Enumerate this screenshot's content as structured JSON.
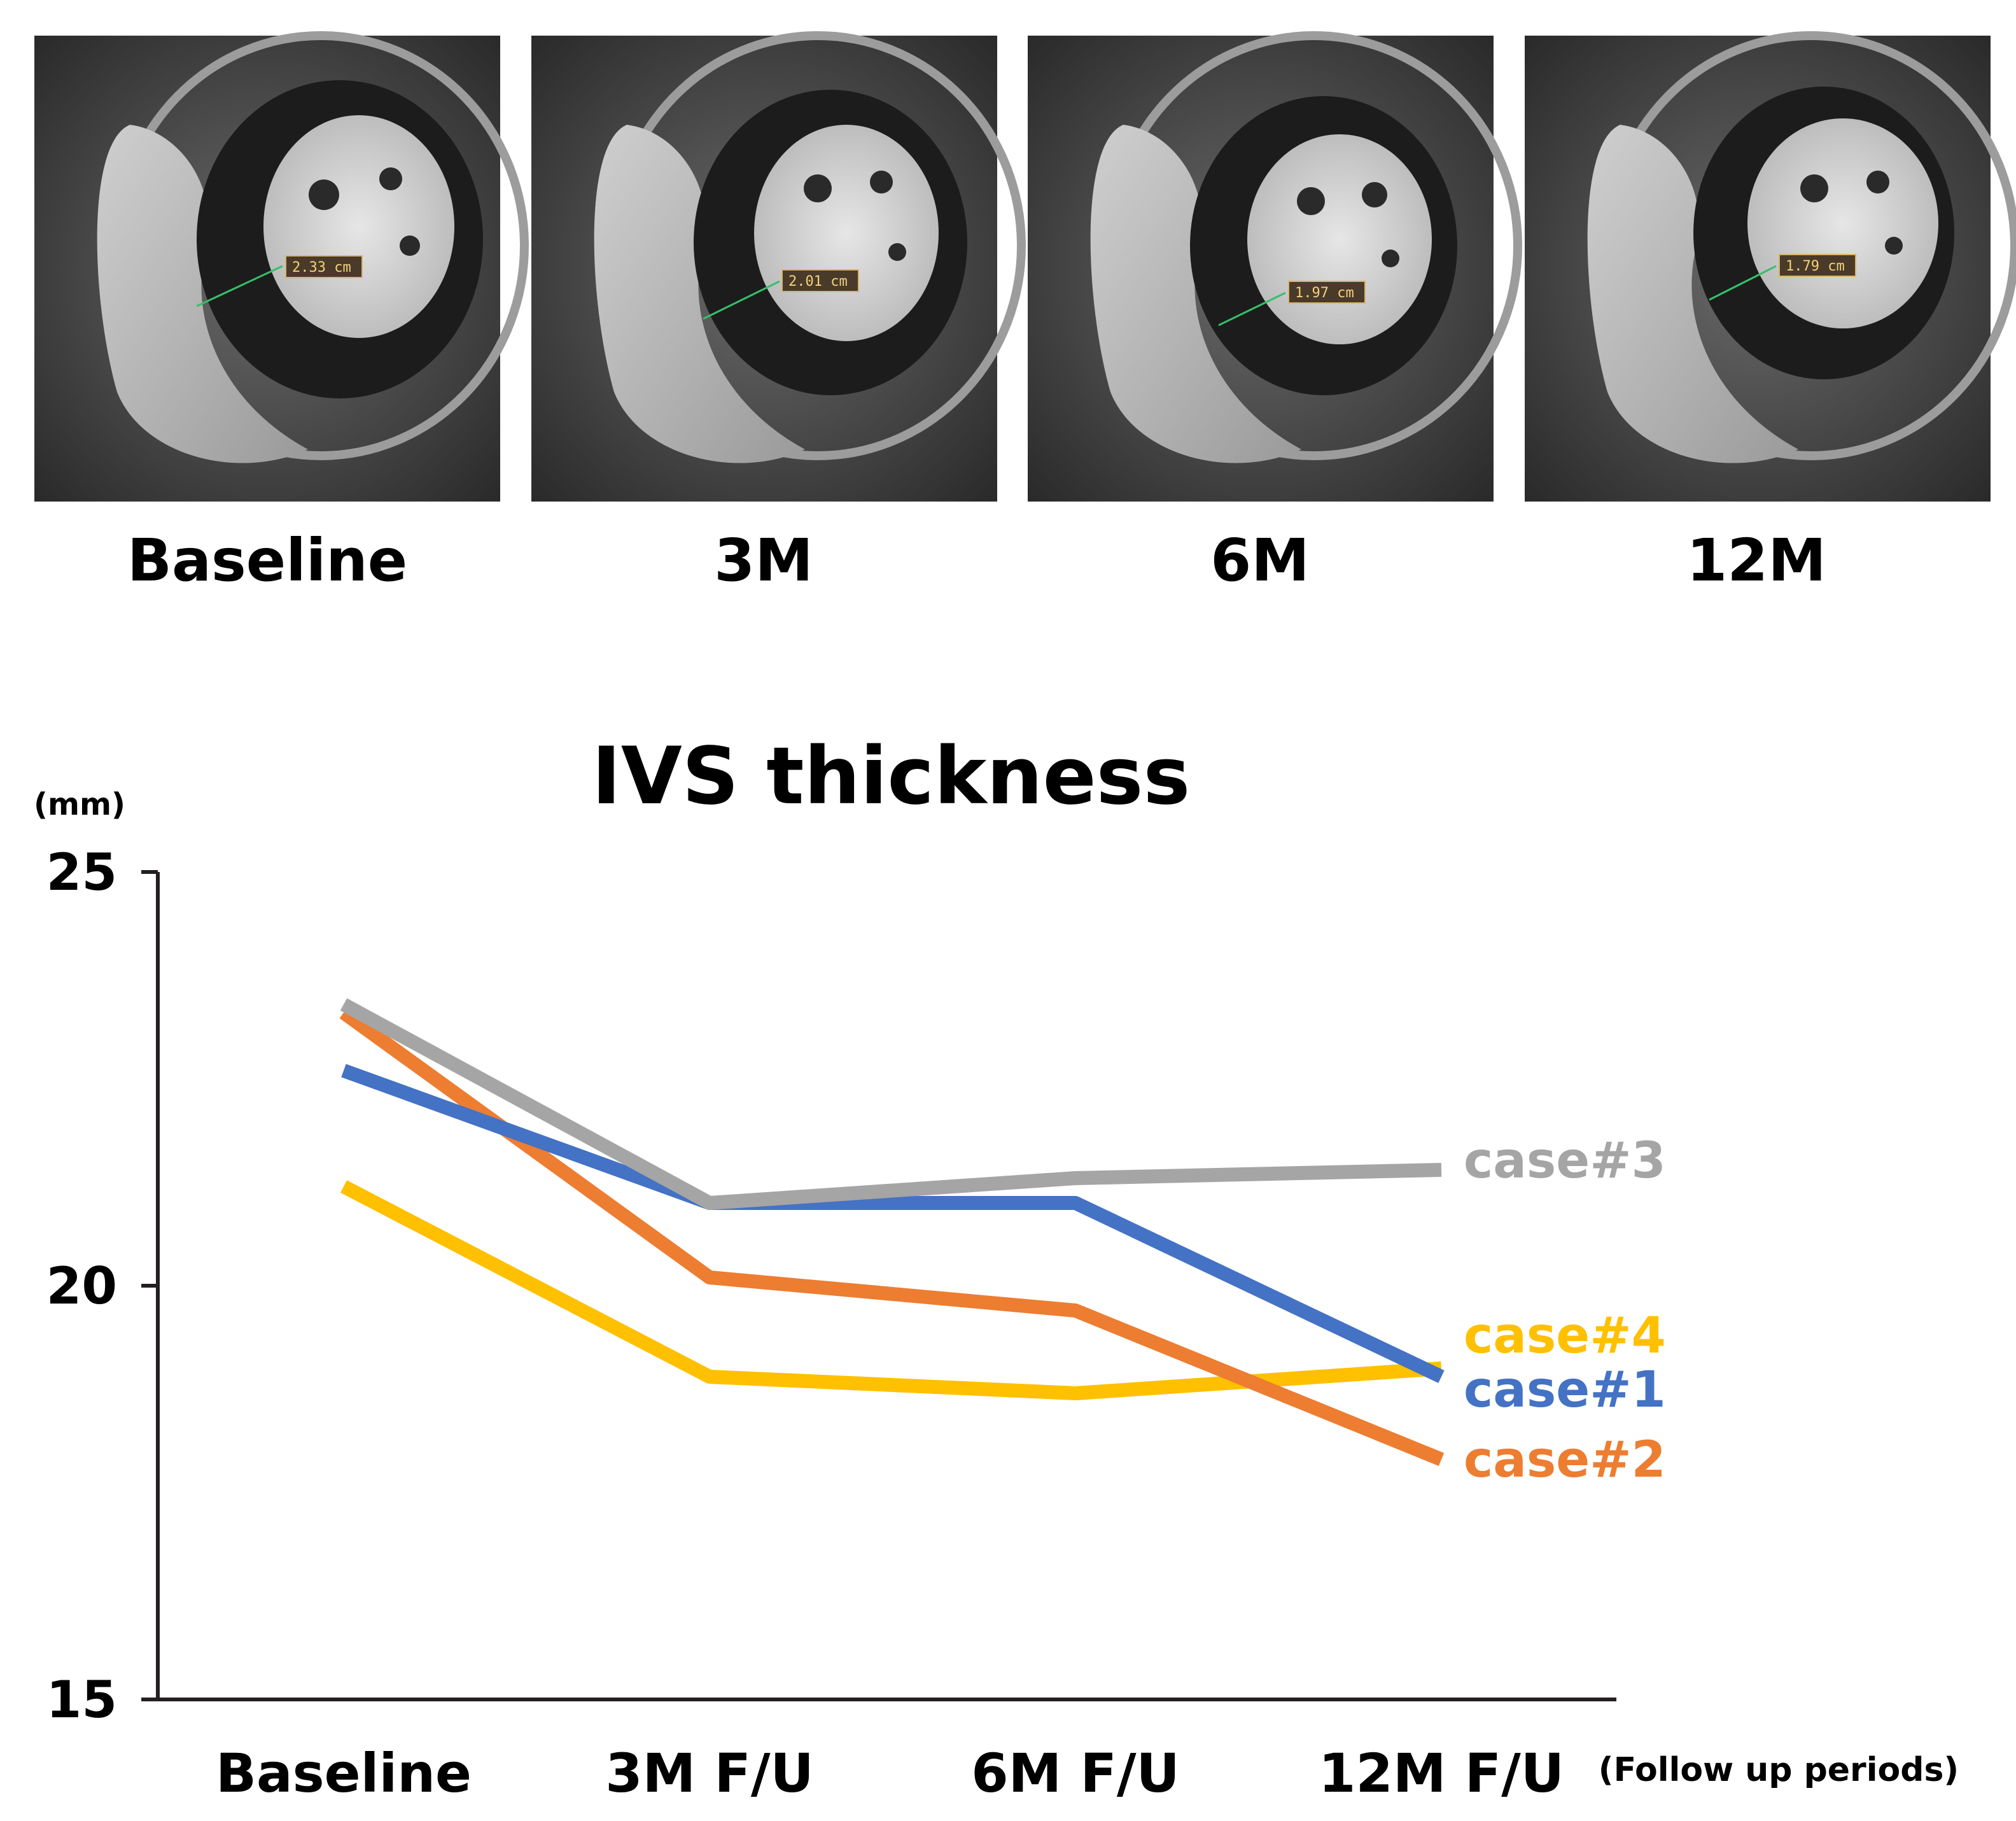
{
  "mri_panels": [
    {
      "label": "Baseline",
      "measurement": "2.33 cm"
    },
    {
      "label": "3M",
      "measurement": "2.01 cm"
    },
    {
      "label": "6M",
      "measurement": "1.97 cm"
    },
    {
      "label": "12M",
      "measurement": "1.79 cm"
    }
  ],
  "chart_data": {
    "type": "line",
    "title": "IVS thickness",
    "ylabel": "(mm)",
    "xlabel": "(Follow up periods)",
    "categories": [
      "Baseline",
      "3M F/U",
      "6M F/U",
      "12M F/U"
    ],
    "ylim": [
      15,
      25
    ],
    "yticks": [
      15,
      20,
      25
    ],
    "grid": false,
    "series": [
      {
        "name": "case#1",
        "color": "#4472c4",
        "values": [
          22.6,
          21.0,
          21.0,
          18.9
        ]
      },
      {
        "name": "case#2",
        "color": "#ed7d31",
        "values": [
          23.3,
          20.1,
          19.7,
          17.9
        ]
      },
      {
        "name": "case#3",
        "color": "#a5a5a5",
        "values": [
          23.4,
          21.0,
          21.3,
          21.4
        ]
      },
      {
        "name": "case#4",
        "color": "#ffc000",
        "values": [
          21.2,
          18.9,
          18.7,
          19.0
        ]
      }
    ]
  }
}
